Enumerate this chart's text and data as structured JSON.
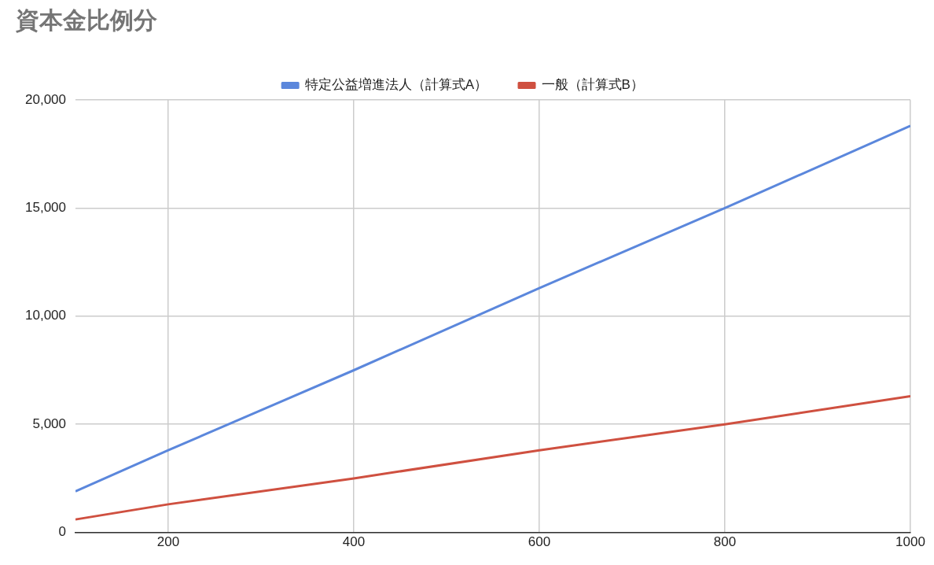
{
  "chart_data": {
    "type": "line",
    "title": "資本金比例分",
    "x": [
      100,
      200,
      400,
      600,
      800,
      1000
    ],
    "series": [
      {
        "name": "特定公益増進法人（計算式A）",
        "color": "#5b87dc",
        "values": [
          1900,
          3800,
          7500,
          11300,
          15000,
          18800
        ]
      },
      {
        "name": "一般（計算式B）",
        "color": "#cf5040",
        "values": [
          600,
          1300,
          2500,
          3800,
          5000,
          6300
        ]
      }
    ],
    "xlim": [
      100,
      1000
    ],
    "xticks": [
      200,
      400,
      600,
      800,
      1000
    ],
    "ylim": [
      0,
      20000
    ],
    "yticks": [
      {
        "value": 0,
        "label": "0"
      },
      {
        "value": 5000,
        "label": "5,000"
      },
      {
        "value": 10000,
        "label": "10,000"
      },
      {
        "value": 15000,
        "label": "15,000"
      },
      {
        "value": 20000,
        "label": "20,000"
      }
    ],
    "grid": true,
    "legend": "top",
    "marker": "none",
    "line_style": "solid"
  }
}
